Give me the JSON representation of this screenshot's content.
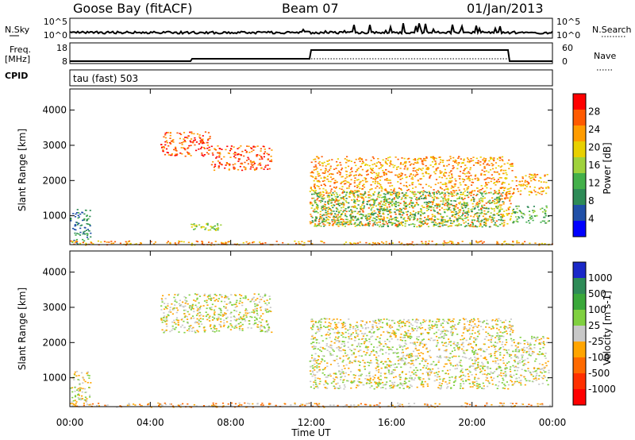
{
  "header": {
    "station": "Goose Bay (fitACF)",
    "beam": "Beam 07",
    "date": "01/Jan/2013"
  },
  "summary": {
    "nsky_label": "N.Sky",
    "nsky_ticks": [
      "10^5",
      "10^0"
    ],
    "nsearch_label": "N.Search",
    "nsearch_ticks": [
      "10^5",
      "10^0"
    ],
    "freq_label": "Freq.",
    "freq_unit": "[MHz]",
    "freq_ticks": [
      "18",
      "8"
    ],
    "nave_label": "Nave",
    "nave_ticks": [
      "60",
      "0"
    ],
    "cpid_label": "CPID",
    "cpid_value": "tau (fast) 503"
  },
  "chart_data": [
    {
      "type": "heatmap",
      "name": "power",
      "ylabel": "Slant Range [km]",
      "ylim": [
        180,
        4600
      ],
      "yticks": [
        1000,
        2000,
        3000,
        4000
      ],
      "colorbar": {
        "label": "Power [dB]",
        "ticks": [
          "28",
          "24",
          "20",
          "16",
          "12",
          "8",
          "4"
        ],
        "colors": [
          "#ff0000",
          "#ff5a00",
          "#ff9c00",
          "#e8d000",
          "#9fd23c",
          "#43b04a",
          "#2e8b57",
          "#2050a8",
          "#0000ff"
        ]
      },
      "regions": [
        {
          "t0": 0.0,
          "t1": 1.0,
          "r0": 200,
          "r1": 1200,
          "level": 6
        },
        {
          "t0": 0.0,
          "t1": 24.0,
          "r0": 180,
          "r1": 300,
          "level": 2
        },
        {
          "t0": 4.5,
          "t1": 7.0,
          "r0": 2700,
          "r1": 3400,
          "level": 1
        },
        {
          "t0": 7.0,
          "t1": 10.0,
          "r0": 2300,
          "r1": 3000,
          "level": 1
        },
        {
          "t0": 6.0,
          "t1": 7.5,
          "r0": 600,
          "r1": 800,
          "level": 4
        },
        {
          "t0": 11.9,
          "t1": 22.0,
          "r0": 700,
          "r1": 2700,
          "level": 2
        },
        {
          "t0": 12.0,
          "t1": 21.5,
          "r0": 700,
          "r1": 1700,
          "level": 5
        },
        {
          "t0": 22.0,
          "t1": 23.8,
          "r0": 1600,
          "r1": 2200,
          "level": 2
        },
        {
          "t0": 22.0,
          "t1": 23.8,
          "r0": 800,
          "r1": 1300,
          "level": 5
        }
      ]
    },
    {
      "type": "heatmap",
      "name": "velocity",
      "ylabel": "Slant Range [km]",
      "xlabel": "Time UT",
      "xticks": [
        "00:00",
        "04:00",
        "08:00",
        "12:00",
        "16:00",
        "20:00",
        "00:00"
      ],
      "ylim": [
        180,
        4600
      ],
      "yticks": [
        1000,
        2000,
        3000,
        4000
      ],
      "colorbar": {
        "label": "Velocity [m s-1]",
        "ticks": [
          "1000",
          "500",
          "100",
          "25",
          "-25",
          "-100",
          "-500",
          "-1000"
        ],
        "colors": [
          "#1a28c8",
          "#2e8b57",
          "#3aa83a",
          "#80d040",
          "#c8c8c8",
          "#ffa500",
          "#ff6a00",
          "#ff3000",
          "#ff0000"
        ]
      },
      "regions": [
        {
          "t0": 0.0,
          "t1": 1.0,
          "r0": 200,
          "r1": 1200,
          "level": 4
        },
        {
          "t0": 0.0,
          "t1": 24.0,
          "r0": 180,
          "r1": 300,
          "level": 5
        },
        {
          "t0": 4.5,
          "t1": 10.0,
          "r0": 2300,
          "r1": 3400,
          "level": 4
        },
        {
          "t0": 11.9,
          "t1": 22.0,
          "r0": 700,
          "r1": 2700,
          "level": 4
        },
        {
          "t0": 22.0,
          "t1": 23.8,
          "r0": 800,
          "r1": 2200,
          "level": 4
        }
      ]
    }
  ]
}
